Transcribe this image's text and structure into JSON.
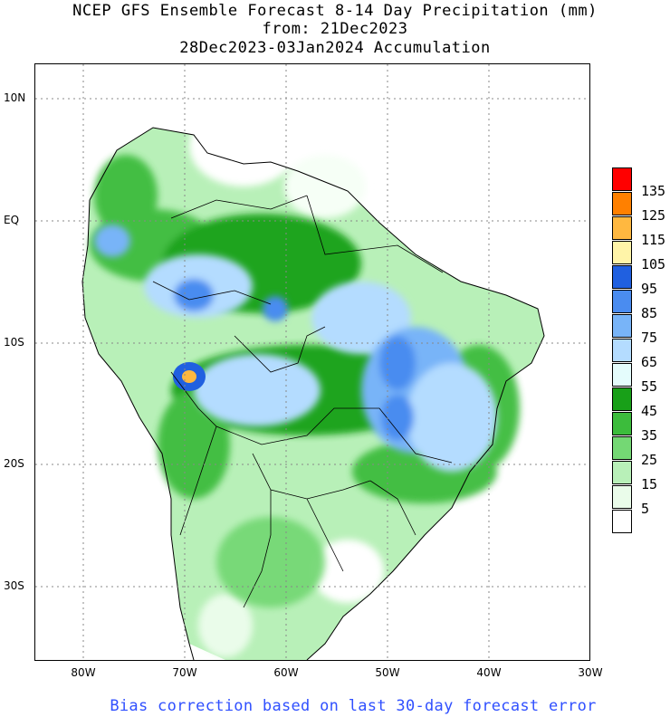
{
  "title": {
    "line1": "NCEP GFS Ensemble Forecast 8-14 Day Precipitation (mm)",
    "line2": "from: 21Dec2023",
    "line3": "28Dec2023-03Jan2024 Accumulation"
  },
  "axes": {
    "lat_labels": [
      "10N",
      "EQ",
      "10S",
      "20S",
      "30S"
    ],
    "lon_labels": [
      "80W",
      "70W",
      "60W",
      "50W",
      "40W",
      "30W"
    ]
  },
  "legend": {
    "unit": "mm",
    "values": [
      "135",
      "125",
      "115",
      "105",
      "95",
      "85",
      "75",
      "65",
      "55",
      "45",
      "35",
      "25",
      "15",
      "5"
    ],
    "colors": [
      "#ff0000",
      "#ff8000",
      "#ffb840",
      "#fff4a8",
      "#2060e0",
      "#4a8cf0",
      "#78b4f8",
      "#b4dcff",
      "#e4fcfc",
      "#18a018",
      "#3cbc3c",
      "#74d874",
      "#b8f0b8",
      "#eafcea",
      "#ffffff"
    ]
  },
  "footer": "Bias correction based on last 30-day forecast error"
}
